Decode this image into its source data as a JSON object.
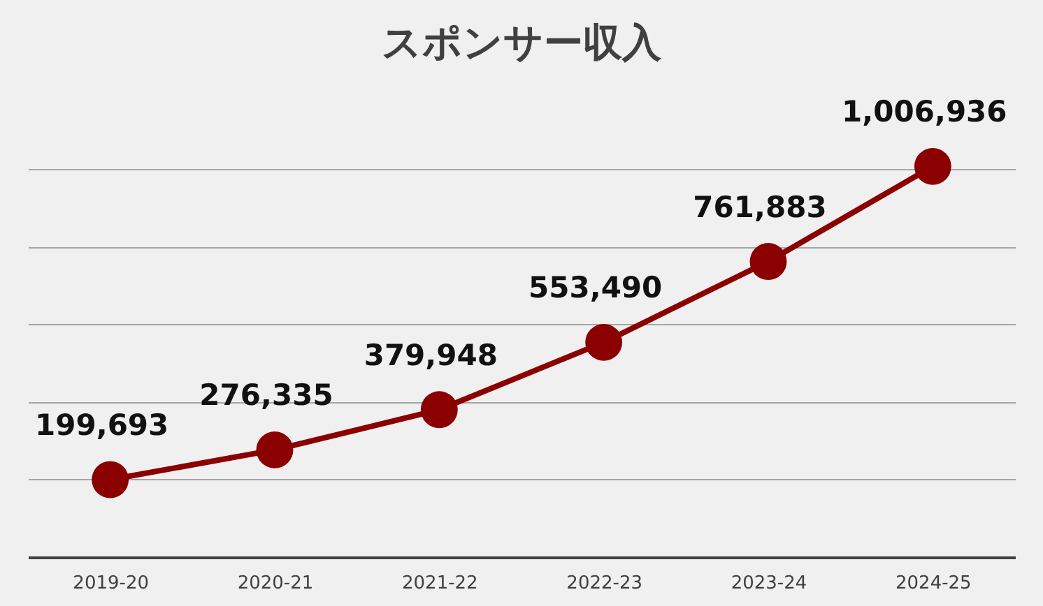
{
  "chart_data": {
    "type": "line",
    "title": "スポンサー収入",
    "categories": [
      "2019-20",
      "2020-21",
      "2021-22",
      "2022-23",
      "2023-24",
      "2024-25"
    ],
    "series": [
      {
        "color": "#8b0000",
        "values": [
          199693,
          276335,
          379948,
          553490,
          761883,
          1006936
        ],
        "value_labels": [
          "199,693",
          "276,335",
          "379,948",
          "553,490",
          "761,883",
          "1,006,936"
        ]
      }
    ],
    "grid": "y",
    "tick_labels": "x",
    "marker": "circle",
    "line_style": "solid"
  }
}
